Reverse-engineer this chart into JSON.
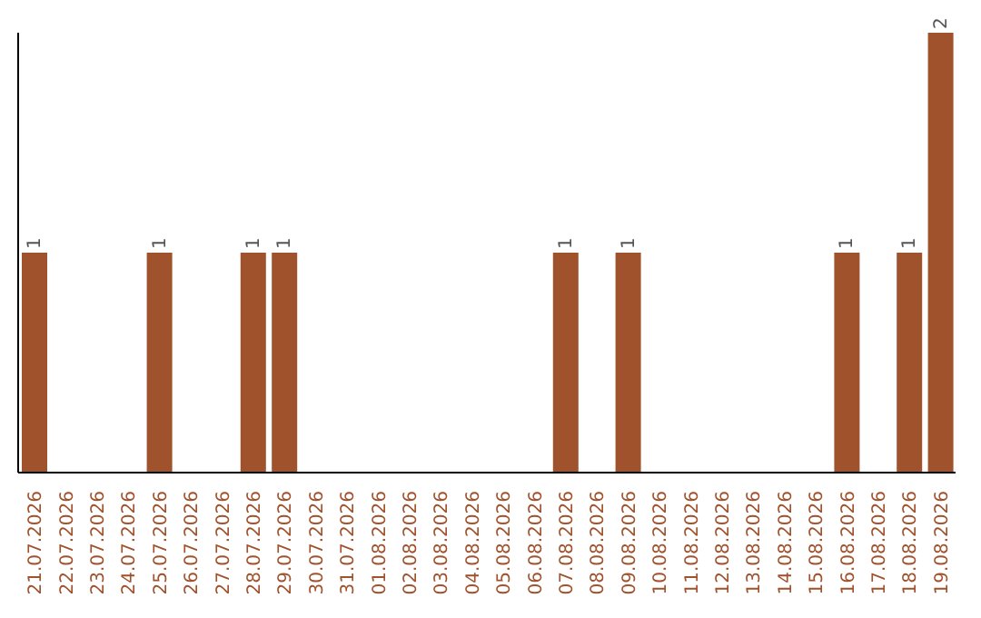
{
  "chart_data": {
    "type": "bar",
    "categories": [
      "21.07.2026",
      "22.07.2026",
      "23.07.2026",
      "24.07.2026",
      "25.07.2026",
      "26.07.2026",
      "27.07.2026",
      "28.07.2026",
      "29.07.2026",
      "30.07.2026",
      "31.07.2026",
      "01.08.2026",
      "02.08.2026",
      "03.08.2026",
      "04.08.2026",
      "05.08.2026",
      "06.08.2026",
      "07.08.2026",
      "08.08.2026",
      "09.08.2026",
      "10.08.2026",
      "11.08.2026",
      "12.08.2026",
      "13.08.2026",
      "14.08.2026",
      "15.08.2026",
      "16.08.2026",
      "17.08.2026",
      "18.08.2026",
      "19.08.2026"
    ],
    "values": [
      1,
      0,
      0,
      0,
      1,
      0,
      0,
      1,
      1,
      0,
      0,
      0,
      0,
      0,
      0,
      0,
      0,
      1,
      0,
      1,
      0,
      0,
      0,
      0,
      0,
      0,
      1,
      0,
      1,
      2
    ],
    "value_labels": [
      "1",
      null,
      null,
      null,
      "1",
      null,
      null,
      "1",
      "1",
      null,
      null,
      null,
      null,
      null,
      null,
      null,
      null,
      "1",
      null,
      "1",
      null,
      null,
      null,
      null,
      null,
      null,
      "1",
      null,
      "1",
      "2"
    ],
    "color": "#a0522d"
  }
}
